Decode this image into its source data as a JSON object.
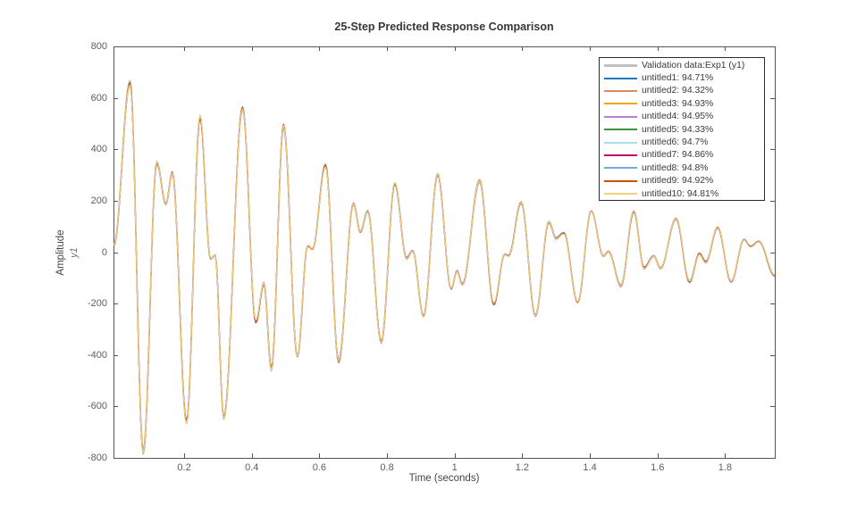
{
  "figure": {
    "title": "25-Step Predicted Response Comparison",
    "background_color": "#ffffff"
  },
  "axes": {
    "x_label": "Time (seconds)",
    "y_label_line1": "Amplitude",
    "y_label_line2": "y1",
    "frame_color": "#555555",
    "tick_color": "#555555",
    "tick_label_color": "#5e5e5e",
    "x_ticks": [
      0.2,
      0.4,
      0.6,
      0.8,
      1,
      1.2,
      1.4,
      1.6,
      1.8
    ],
    "x_tick_labels": [
      "0.2",
      "0.4",
      "0.6",
      "0.8",
      "1",
      "1.2",
      "1.4",
      "1.6",
      "1.8"
    ],
    "y_ticks": [
      800,
      600,
      400,
      200,
      0,
      -200,
      -400,
      -600,
      -800
    ],
    "y_tick_labels": [
      "800",
      "600",
      "400",
      "200",
      "0",
      "-200",
      "-400",
      "-600",
      "-800"
    ],
    "x_range": [
      -0.009,
      1.947
    ],
    "y_range": [
      -800,
      800
    ]
  },
  "legend": {
    "entries": [
      {
        "label": "Validation data:Exp1 (y1)",
        "color": "#c0c0c0",
        "thick": true
      },
      {
        "label": "untitled1: 94.71%",
        "color": "#2176b5",
        "thick": false
      },
      {
        "label": "untitled2: 94.32%",
        "color": "#dd8a5e",
        "thick": false
      },
      {
        "label": "untitled3: 94.93%",
        "color": "#eba71e",
        "thick": false
      },
      {
        "label": "untitled4: 94.95%",
        "color": "#b87fd6",
        "thick": false
      },
      {
        "label": "untitled5: 94.33%",
        "color": "#3e9243",
        "thick": false
      },
      {
        "label": "untitled6: 94.7%",
        "color": "#a5def2",
        "thick": false
      },
      {
        "label": "untitled7: 94.86%",
        "color": "#c1006e",
        "thick": false
      },
      {
        "label": "untitled8: 94.8%",
        "color": "#75a9db",
        "thick": false
      },
      {
        "label": "untitled9: 94.92%",
        "color": "#c2530f",
        "thick": false
      },
      {
        "label": "untitled10: 94.81%",
        "color": "#f2d07e",
        "thick": false
      }
    ]
  },
  "chart_data": {
    "type": "line",
    "title": "25-Step Predicted Response Comparison",
    "xlabel": "Time (seconds)",
    "ylabel": "Amplitude y1",
    "xlim": [
      -0.009,
      1.947
    ],
    "ylim": [
      -800,
      800
    ],
    "x_ticks": [
      0.2,
      0.4,
      0.6,
      0.8,
      1,
      1.2,
      1.4,
      1.6,
      1.8
    ],
    "y_ticks": [
      -800,
      -600,
      -400,
      -200,
      0,
      200,
      400,
      600,
      800
    ],
    "grid": false,
    "legend_position": "upper right inside axes",
    "series": [
      {
        "name": "Validation data:Exp1 (y1)",
        "color": "#c0c0c0",
        "fit_percent": null
      },
      {
        "name": "untitled1",
        "color": "#2176b5",
        "fit_percent": 94.71
      },
      {
        "name": "untitled2",
        "color": "#dd8a5e",
        "fit_percent": 94.32
      },
      {
        "name": "untitled3",
        "color": "#eba71e",
        "fit_percent": 94.93
      },
      {
        "name": "untitled4",
        "color": "#b87fd6",
        "fit_percent": 94.95
      },
      {
        "name": "untitled5",
        "color": "#3e9243",
        "fit_percent": 94.33
      },
      {
        "name": "untitled6",
        "color": "#a5def2",
        "fit_percent": 94.7
      },
      {
        "name": "untitled7",
        "color": "#c1006e",
        "fit_percent": 94.86
      },
      {
        "name": "untitled8",
        "color": "#75a9db",
        "fit_percent": 94.8
      },
      {
        "name": "untitled9",
        "color": "#c2530f",
        "fit_percent": 94.92
      },
      {
        "name": "untitled10",
        "color": "#f2d07e",
        "fit_percent": 94.81
      }
    ],
    "note": "All 11 series overlap almost exactly (decaying two-mode oscillation). Shared waveform below as extrema keypoints (t seconds, amplitude); curve interpolates smoothly between successive extrema.",
    "waveform_keypoints_t": [
      -0.008,
      0.04,
      0.079,
      0.119,
      0.146,
      0.165,
      0.207,
      0.247,
      0.278,
      0.292,
      0.317,
      0.373,
      0.412,
      0.436,
      0.458,
      0.494,
      0.535,
      0.565,
      0.58,
      0.618,
      0.657,
      0.701,
      0.721,
      0.743,
      0.783,
      0.823,
      0.858,
      0.876,
      0.908,
      0.95,
      0.99,
      1.007,
      1.023,
      1.074,
      1.116,
      1.148,
      1.16,
      1.197,
      1.239,
      1.279,
      1.3,
      1.323,
      1.364,
      1.404,
      1.44,
      1.455,
      1.492,
      1.53,
      1.56,
      1.589,
      1.609,
      1.655,
      1.695,
      1.724,
      1.743,
      1.778,
      1.818,
      1.856,
      1.875,
      1.9,
      1.947
    ],
    "waveform_keypoints_y": [
      25,
      655,
      -780,
      349,
      187,
      308,
      -660,
      528,
      -25,
      -12,
      -645,
      560,
      -270,
      -120,
      -455,
      493,
      -405,
      25,
      12,
      337,
      -426,
      187,
      77,
      158,
      -351,
      268,
      -24,
      5,
      -250,
      302,
      -142,
      -72,
      -124,
      279,
      -200,
      -8,
      -14,
      193,
      -247,
      117,
      54,
      74,
      -197,
      158,
      -16,
      2,
      -131,
      158,
      -62,
      -15,
      -62,
      131,
      -114,
      -6,
      -39,
      97,
      -114,
      48,
      22,
      42,
      -91
    ]
  }
}
